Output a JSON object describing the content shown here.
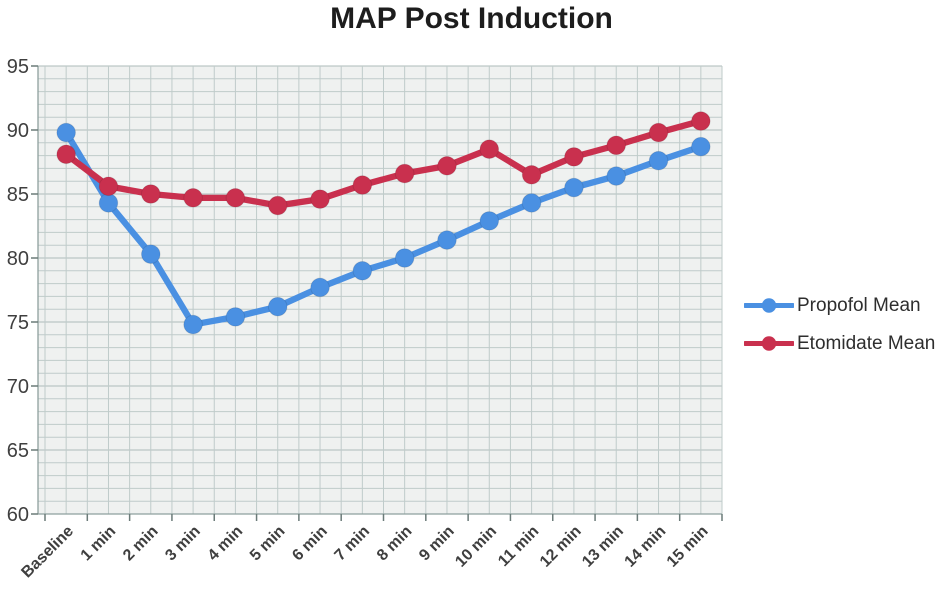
{
  "title": "MAP Post Induction",
  "colors": {
    "propofol_blue": "#4a90e2",
    "etomidate_red": "#c9304e",
    "plot_background": "#eff1f0",
    "grid_minor": "#bfcbca",
    "grid_major": "#aebbba",
    "axis_line": "#8ea09e",
    "tick": "#6b7b79",
    "axis_label": "#3f3f3f",
    "title_color": "#1d1d1d"
  },
  "chart_data": {
    "type": "line",
    "title": "MAP Post Induction",
    "categories": [
      "Baseline",
      "1 min",
      "2 min",
      "3 min",
      "4 min",
      "5 min",
      "6 min",
      "7 min",
      "8 min",
      "9 min",
      "10 min",
      "11 min",
      "12 min",
      "13 min",
      "14 min",
      "15 min"
    ],
    "series": [
      {
        "name": "Propofol Mean",
        "color": "#4a90e2",
        "values": [
          89.8,
          84.3,
          80.3,
          74.8,
          75.4,
          76.2,
          77.7,
          79.0,
          80.0,
          81.4,
          82.9,
          84.3,
          85.5,
          86.4,
          87.6,
          88.7
        ]
      },
      {
        "name": "Etomidate Mean",
        "color": "#c9304e",
        "values": [
          88.1,
          85.6,
          85.0,
          84.7,
          84.7,
          84.1,
          84.6,
          85.7,
          86.6,
          87.2,
          88.5,
          86.5,
          87.9,
          88.8,
          89.8,
          90.7
        ]
      }
    ],
    "ylim": [
      60,
      95
    ],
    "ytick_step": 5,
    "y_minor_step": 1,
    "yticks": [
      "60",
      "65",
      "70",
      "75",
      "80",
      "85",
      "90",
      "95"
    ],
    "grid": "on",
    "legend_position": "right-center",
    "marker": "circle"
  }
}
